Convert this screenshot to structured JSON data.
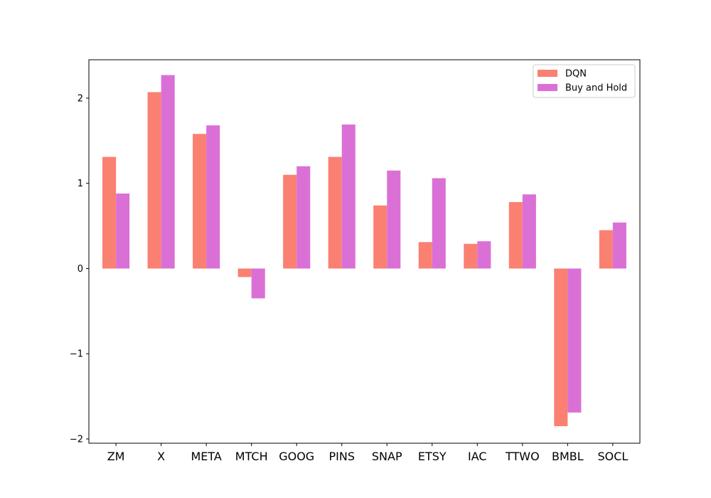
{
  "chart_data": {
    "type": "bar",
    "title": "",
    "xlabel": "",
    "ylabel": "",
    "categories": [
      "ZM",
      "X",
      "META",
      "MTCH",
      "GOOG",
      "PINS",
      "SNAP",
      "ETSY",
      "IAC",
      "TTWO",
      "BMBL",
      "SOCL"
    ],
    "series": [
      {
        "name": "DQN",
        "color": "#fa8072",
        "values": [
          1.31,
          2.07,
          1.58,
          -0.1,
          1.1,
          1.31,
          0.74,
          0.31,
          0.29,
          0.78,
          -1.85,
          0.45
        ]
      },
      {
        "name": "Buy and Hold",
        "color": "#da70d6",
        "values": [
          0.88,
          2.27,
          1.68,
          -0.35,
          1.2,
          1.69,
          1.15,
          1.06,
          0.32,
          0.87,
          -1.69,
          0.54
        ]
      }
    ],
    "ylim": [
      -2.05,
      2.45
    ],
    "yticks": [
      -2,
      -1,
      0,
      1,
      2
    ],
    "ytick_labels": [
      "−2",
      "−1",
      "0",
      "1",
      "2"
    ],
    "grid": false,
    "legend_position": "top-right"
  }
}
